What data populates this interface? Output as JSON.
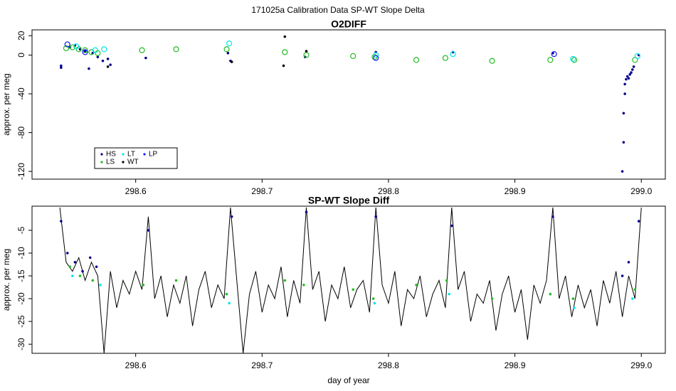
{
  "suptitle": "171025a   Calibration Data SP-WT Slope Delta",
  "chart_data": [
    {
      "type": "scatter",
      "title": "O2DIFF",
      "ylabel": "approx. per meg",
      "xlim": [
        298.518,
        299.019
      ],
      "ylim": [
        -128,
        26
      ],
      "xticks": [
        298.6,
        298.7,
        298.8,
        298.9,
        {
          "value": 299,
          "label": "299.0"
        }
      ],
      "yticks": [
        20,
        0,
        -40,
        -80,
        -120
      ],
      "legend": "bottom-left",
      "series": [
        {
          "name": "HS",
          "color": "#00008b",
          "marker": "dot",
          "x": [
            298.541,
            298.541,
            298.548,
            298.552,
            298.556,
            298.56,
            298.563,
            298.566,
            298.57,
            298.574,
            298.578,
            298.58,
            298.608,
            298.673,
            298.675,
            298.734,
            298.79,
            298.851,
            298.93,
            298.985,
            298.986,
            298.986,
            298.987,
            298.987,
            298.988,
            298.989,
            298.99,
            298.991,
            298.992,
            298.993,
            298.994,
            298.998
          ],
          "values": [
            -11,
            -13,
            8,
            10,
            6,
            4,
            -14,
            2,
            -2,
            -6,
            -4,
            -10,
            -3,
            2,
            -6,
            -2,
            3,
            3,
            2,
            -120,
            -90,
            -60,
            -40,
            -30,
            -25,
            -22,
            -24,
            -20,
            -18,
            -15,
            -12,
            0
          ]
        },
        {
          "name": "LS",
          "color": "#22bb22",
          "marker": "open",
          "x": [
            298.545,
            298.55,
            298.555,
            298.56,
            298.565,
            298.57,
            298.605,
            298.632,
            298.672,
            298.718,
            298.735,
            298.772,
            298.789,
            298.822,
            298.845,
            298.882,
            298.928,
            298.947,
            298.995
          ],
          "values": [
            7,
            8,
            6,
            5,
            3,
            2,
            5,
            6,
            6,
            3,
            0,
            -1,
            -2,
            -5,
            -3,
            -6,
            -5,
            -5,
            -5
          ]
        },
        {
          "name": "LT",
          "color": "#00e5ee",
          "marker": "open",
          "x": [
            298.553,
            298.568,
            298.575,
            298.674,
            298.79,
            298.851,
            298.946,
            298.997
          ],
          "values": [
            9,
            5,
            6,
            12,
            0,
            1,
            -4,
            -1
          ]
        },
        {
          "name": "WT",
          "color": "#000000",
          "marker": "dot",
          "x": [
            298.717,
            298.718,
            298.676,
            298.735,
            298.578
          ],
          "values": [
            -11,
            19,
            -7,
            4,
            -12
          ]
        },
        {
          "name": "LP",
          "color": "#1a1aff",
          "marker": "open",
          "x": [
            298.546,
            298.56,
            298.79,
            298.931
          ],
          "values": [
            11,
            3,
            -3,
            1
          ]
        }
      ]
    },
    {
      "type": "line",
      "title": "SP-WT Slope Diff",
      "ylabel": "approx. per meg",
      "xlabel": "day of year",
      "xlim": [
        298.518,
        299.019
      ],
      "ylim": [
        -32,
        0.3
      ],
      "xticks": [
        298.6,
        298.7,
        298.8,
        298.9,
        {
          "value": 299,
          "label": "299.0"
        }
      ],
      "yticks": [
        -5,
        -10,
        -15,
        -20,
        -25,
        -30
      ],
      "series": [
        {
          "type": "line",
          "color": "#000000",
          "x": [
            298.54,
            298.545,
            298.55,
            298.555,
            298.56,
            298.565,
            298.57,
            298.575,
            298.58,
            298.585,
            298.59,
            298.595,
            298.6,
            298.605,
            298.61,
            298.615,
            298.62,
            298.625,
            298.63,
            298.635,
            298.64,
            298.645,
            298.65,
            298.655,
            298.66,
            298.665,
            298.67,
            298.675,
            298.68,
            298.685,
            298.69,
            298.695,
            298.7,
            298.705,
            298.71,
            298.715,
            298.72,
            298.725,
            298.73,
            298.735,
            298.74,
            298.745,
            298.75,
            298.755,
            298.76,
            298.765,
            298.77,
            298.775,
            298.78,
            298.785,
            298.79,
            298.795,
            298.8,
            298.805,
            298.81,
            298.815,
            298.82,
            298.825,
            298.83,
            298.835,
            298.84,
            298.845,
            298.85,
            298.855,
            298.86,
            298.865,
            298.87,
            298.875,
            298.88,
            298.885,
            298.89,
            298.895,
            298.9,
            298.905,
            298.91,
            298.915,
            298.92,
            298.925,
            298.93,
            298.935,
            298.94,
            298.945,
            298.95,
            298.955,
            298.96,
            298.965,
            298.97,
            298.975,
            298.98,
            298.985,
            298.99,
            298.995,
            299.0
          ],
          "values": [
            0,
            -12,
            -14,
            -11,
            -16,
            -12,
            -15,
            -32,
            -14,
            -22,
            -16,
            -19,
            -14,
            -18,
            -2,
            -20,
            -15,
            -24,
            -17,
            -21,
            -15,
            -26,
            -18,
            -14,
            -22,
            -17,
            -20,
            0,
            -16,
            -32,
            -19,
            -14,
            -23,
            -17,
            -20,
            -13,
            -24,
            -16,
            -21,
            0,
            -18,
            -14,
            -25,
            -17,
            -20,
            -13,
            -22,
            -18,
            -16,
            -23,
            0,
            -17,
            -21,
            -14,
            -26,
            -18,
            -20,
            -15,
            -24,
            -19,
            -16,
            -22,
            0,
            -18,
            -14,
            -25,
            -19,
            -21,
            -16,
            -27,
            -19,
            -15,
            -23,
            -18,
            -29,
            -17,
            -21,
            -16,
            0,
            -20,
            -15,
            -24,
            -17,
            -22,
            -18,
            -26,
            -16,
            -21,
            -14,
            -24,
            -15,
            -20,
            0
          ]
        },
        {
          "type": "scatter",
          "color": "#00008b",
          "x": [
            298.541,
            298.546,
            298.552,
            298.558,
            298.564,
            298.569,
            298.61,
            298.676,
            298.735,
            298.79,
            298.85,
            298.93,
            298.985,
            298.99,
            298.998
          ],
          "values": [
            -3,
            -10,
            -12,
            -14,
            -11,
            -13,
            -5,
            -2,
            -1,
            -2,
            -4,
            -2,
            -15,
            -12,
            -3
          ]
        },
        {
          "type": "scatter",
          "color": "#22bb22",
          "x": [
            298.548,
            298.556,
            298.566,
            298.606,
            298.632,
            298.672,
            298.718,
            298.733,
            298.772,
            298.788,
            298.822,
            298.846,
            298.882,
            298.928,
            298.946,
            298.995
          ],
          "values": [
            -13,
            -15,
            -16,
            -17,
            -16,
            -19,
            -16,
            -17,
            -18,
            -20,
            -17,
            -16,
            -20,
            -19,
            -20,
            -18
          ]
        },
        {
          "type": "scatter",
          "color": "#00e5ee",
          "x": [
            298.55,
            298.572,
            298.674,
            298.789,
            298.848,
            298.947,
            298.993
          ],
          "values": [
            -15,
            -17,
            -21,
            -21,
            -19,
            -22,
            -20
          ]
        }
      ]
    }
  ]
}
